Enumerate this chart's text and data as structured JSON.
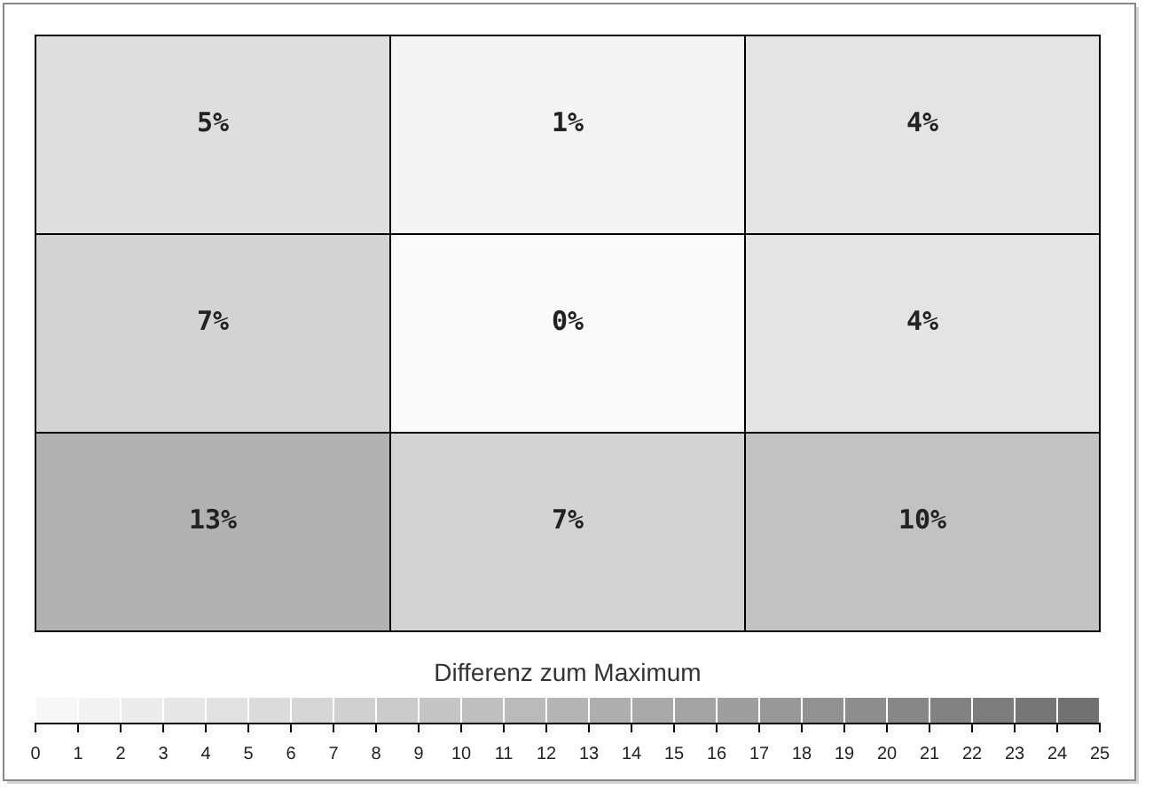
{
  "chart_data": {
    "type": "heatmap",
    "categories": [
      null,
      null,
      null
    ],
    "y_categories": [
      null,
      null,
      null
    ],
    "cells": [
      [
        5,
        1,
        4
      ],
      [
        7,
        0,
        4
      ],
      [
        13,
        7,
        10
      ]
    ],
    "cell_labels": [
      [
        "5%",
        "1%",
        "4%"
      ],
      [
        "7%",
        "0%",
        "4%"
      ],
      [
        "13%",
        "7%",
        "10%"
      ]
    ],
    "clabel": "Differenz zum Maximum",
    "clim": [
      0,
      25
    ],
    "cticks": [
      0,
      1,
      2,
      3,
      4,
      5,
      6,
      7,
      8,
      9,
      10,
      11,
      12,
      13,
      14,
      15,
      16,
      17,
      18,
      19,
      20,
      21,
      22,
      23,
      24,
      25
    ],
    "tick_labels": false
  }
}
